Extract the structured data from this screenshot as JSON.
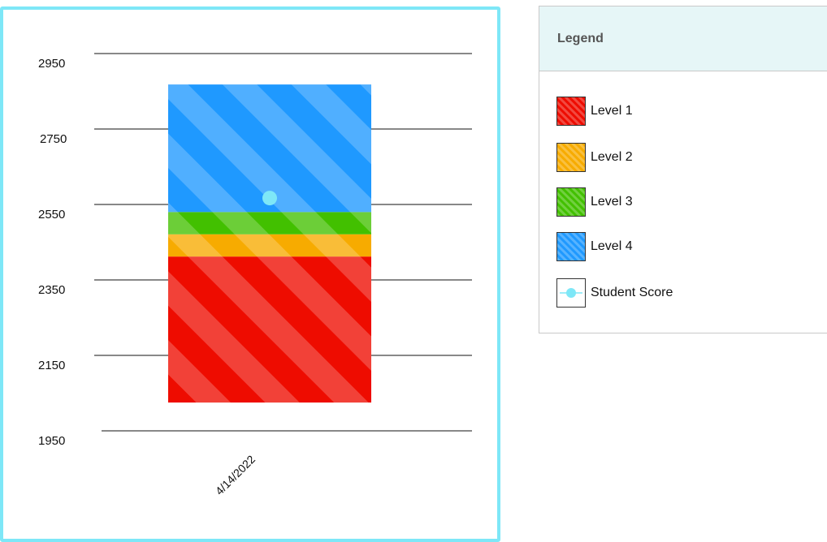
{
  "chart_data": {
    "type": "bar",
    "categories": [
      "4/14/2022"
    ],
    "y_ticks": [
      1950,
      2150,
      2350,
      2550,
      2750,
      2950
    ],
    "ylim": [
      1950,
      2950
    ],
    "grid": true,
    "levels": [
      {
        "name": "Level 1",
        "from": 2025,
        "to": 2412,
        "color": "#ee0c00"
      },
      {
        "name": "Level 2",
        "from": 2412,
        "to": 2471,
        "color": "#f7ab00"
      },
      {
        "name": "Level 3",
        "from": 2471,
        "to": 2530,
        "color": "#42c000"
      },
      {
        "name": "Level 4",
        "from": 2530,
        "to": 2868,
        "color": "#1f99ff"
      }
    ],
    "student_score": {
      "name": "Student Score",
      "date": "4/14/2022",
      "value": 2567,
      "color": "#7ee7f7"
    }
  },
  "legend": {
    "title": "Legend",
    "items": [
      {
        "label": "Level 1",
        "color": "#ee0c00",
        "icon": "level-1-swatch"
      },
      {
        "label": "Level 2",
        "color": "#f7ab00",
        "icon": "level-2-swatch"
      },
      {
        "label": "Level 3",
        "color": "#42c000",
        "icon": "level-3-swatch"
      },
      {
        "label": "Level 4",
        "color": "#1f99ff",
        "icon": "level-4-swatch"
      },
      {
        "label": "Student Score",
        "color": "#7ee7f7",
        "icon": "score-marker"
      }
    ]
  }
}
